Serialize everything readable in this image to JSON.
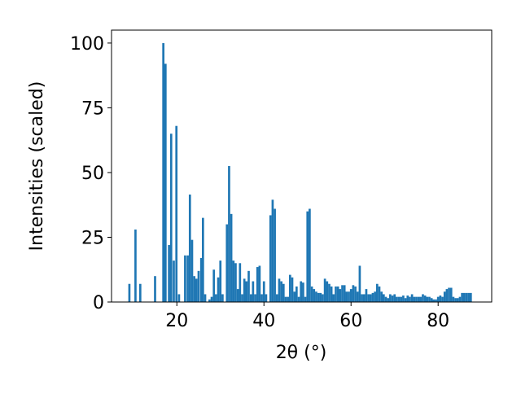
{
  "chart_data": {
    "type": "bar",
    "xlabel": "2θ (°)",
    "ylabel": "Intensities (scaled)",
    "color": "#1f77b4",
    "xlim": [
      5.0,
      92.3
    ],
    "ylim": [
      0,
      105
    ],
    "xticks": [
      20,
      40,
      60,
      80
    ],
    "yticks": [
      0,
      25,
      50,
      75,
      100
    ],
    "x": [
      9.1,
      10.5,
      11.6,
      15.0,
      16.9,
      17.4,
      18.2,
      18.7,
      19.3,
      19.9,
      20.5,
      21.9,
      22.5,
      23.0,
      23.5,
      24.0,
      24.5,
      25.0,
      25.6,
      26.0,
      26.5,
      27.5,
      28.0,
      28.5,
      29.0,
      29.5,
      30.0,
      30.5,
      31.5,
      32.0,
      32.5,
      33.0,
      33.5,
      34.0,
      34.5,
      35.0,
      35.5,
      36.0,
      36.5,
      37.0,
      37.5,
      38.0,
      38.5,
      39.0,
      39.5,
      40.0,
      40.5,
      41.5,
      42.0,
      42.5,
      43.0,
      43.5,
      44.0,
      44.5,
      45.0,
      45.5,
      46.0,
      46.5,
      47.0,
      47.5,
      48.0,
      48.5,
      49.0,
      49.5,
      50.0,
      50.5,
      51.0,
      51.5,
      52.0,
      52.5,
      53.0,
      53.5,
      54.0,
      54.5,
      55.0,
      55.5,
      56.0,
      56.5,
      57.0,
      57.5,
      58.0,
      58.5,
      59.0,
      59.5,
      60.0,
      60.5,
      61.0,
      61.5,
      62.0,
      62.5,
      63.0,
      63.5,
      64.0,
      64.5,
      65.0,
      65.5,
      66.0,
      66.5,
      67.0,
      67.5,
      68.0,
      68.5,
      69.0,
      69.5,
      70.0,
      70.5,
      71.0,
      71.5,
      72.0,
      72.5,
      73.0,
      73.5,
      74.0,
      74.5,
      75.0,
      75.5,
      76.0,
      76.5,
      77.0,
      77.5,
      78.0,
      78.5,
      79.0,
      79.5,
      80.0,
      80.5,
      81.0,
      81.5,
      82.0,
      82.5,
      83.0,
      83.5,
      84.0,
      84.5,
      85.0,
      85.5,
      86.0,
      86.5,
      87.0,
      87.5
    ],
    "values": [
      7,
      28,
      7,
      10,
      100,
      92,
      22,
      65,
      16,
      68,
      3,
      18,
      18,
      41.5,
      24,
      10,
      9,
      12,
      17,
      32.5,
      3,
      1,
      2,
      12.5,
      3,
      9.5,
      16,
      3,
      30,
      52.5,
      34,
      16,
      15,
      5,
      15,
      3,
      9,
      8,
      12,
      3,
      8,
      3,
      13.5,
      14,
      3,
      8,
      3,
      33.5,
      39.5,
      36,
      3,
      9,
      8,
      7,
      2,
      2,
      10.5,
      9.5,
      4,
      6,
      2,
      8,
      7.5,
      2,
      35,
      36,
      6,
      5,
      4,
      3.5,
      3.5,
      3,
      9,
      8,
      7,
      6,
      3,
      6,
      6,
      5,
      6.5,
      6.5,
      4,
      4,
      5,
      6.5,
      6,
      4,
      14,
      3,
      3,
      5,
      3,
      3,
      3.5,
      4,
      7,
      6,
      4,
      3,
      2,
      1.5,
      3,
      2.5,
      3,
      2,
      2,
      2,
      2.5,
      1.5,
      2.5,
      2,
      3,
      2,
      2,
      2,
      2,
      3,
      2.5,
      2,
      2,
      1.5,
      1,
      1,
      2,
      2.5,
      2,
      4,
      5,
      5.5,
      5.5,
      2,
      1.5,
      1.5,
      2,
      3.5,
      3.5,
      3.5,
      3.5,
      3.5
    ]
  }
}
